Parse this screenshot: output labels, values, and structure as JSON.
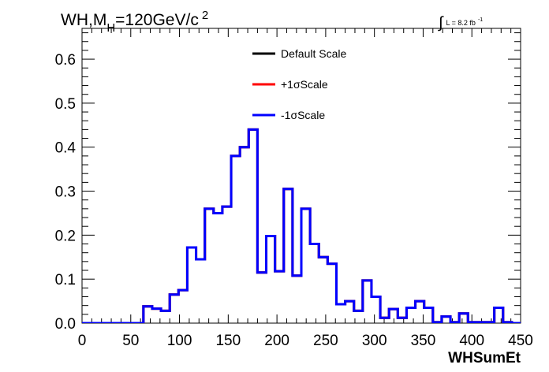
{
  "chart_data": {
    "type": "line",
    "title_parts": {
      "prefix": "WH,M",
      "sub": "H",
      "mid": "=120GeV/c",
      "sup": "2"
    },
    "lumi_parts": {
      "integral": "∫",
      "text": "L = 8.2 fb",
      "sup": "-1"
    },
    "xlabel": "WHSumEt",
    "ylabel": "",
    "xlim": [
      0,
      450
    ],
    "ylim": [
      0,
      0.67
    ],
    "x_ticks": [
      "0",
      "50",
      "100",
      "150",
      "200",
      "250",
      "300",
      "350",
      "400",
      "450"
    ],
    "y_ticks": [
      "0.0",
      "0.1",
      "0.2",
      "0.3",
      "0.4",
      "0.5",
      "0.6"
    ],
    "grid": false,
    "legend_position": "top-center",
    "bin_edges": [
      0,
      9,
      18,
      27,
      36,
      45,
      54,
      63,
      72,
      81,
      90,
      99,
      108,
      117,
      126,
      135,
      144,
      153,
      162,
      171,
      180,
      189,
      198,
      207,
      216,
      225,
      234,
      243,
      252,
      261,
      270,
      279,
      288,
      297,
      306,
      315,
      324,
      333,
      342,
      351,
      360,
      369,
      378,
      387,
      396,
      405,
      414,
      423,
      432,
      441,
      450
    ],
    "series": [
      {
        "name": "Default Scale",
        "color": "#000000",
        "values": [
          0,
          0,
          0,
          0,
          0,
          0,
          0,
          0.038,
          0.033,
          0.028,
          0.065,
          0.075,
          0.172,
          0.145,
          0.26,
          0.25,
          0.265,
          0.38,
          0.4,
          0.44,
          0.115,
          0.198,
          0.118,
          0.305,
          0.108,
          0.26,
          0.18,
          0.15,
          0.135,
          0.043,
          0.05,
          0.028,
          0.097,
          0.06,
          0.012,
          0.032,
          0.012,
          0.035,
          0.05,
          0.035,
          0.002,
          0.015,
          0.002,
          0.022,
          0.002,
          0.002,
          0.002,
          0.035,
          0.002,
          0
        ]
      },
      {
        "name": "+1σScale",
        "color": "#ff0000",
        "values": [
          0,
          0,
          0,
          0,
          0,
          0,
          0,
          0.038,
          0.033,
          0.028,
          0.065,
          0.075,
          0.172,
          0.145,
          0.26,
          0.25,
          0.265,
          0.38,
          0.4,
          0.44,
          0.115,
          0.198,
          0.118,
          0.305,
          0.108,
          0.26,
          0.18,
          0.15,
          0.135,
          0.043,
          0.05,
          0.028,
          0.097,
          0.06,
          0.012,
          0.032,
          0.012,
          0.035,
          0.05,
          0.035,
          0.002,
          0.015,
          0.002,
          0.022,
          0.002,
          0.002,
          0.002,
          0.035,
          0.002,
          0
        ]
      },
      {
        "name": "-1σScale",
        "color": "#0000ff",
        "values": [
          0,
          0,
          0,
          0,
          0,
          0,
          0,
          0.038,
          0.033,
          0.028,
          0.065,
          0.075,
          0.172,
          0.145,
          0.26,
          0.25,
          0.265,
          0.38,
          0.4,
          0.44,
          0.115,
          0.198,
          0.118,
          0.305,
          0.108,
          0.26,
          0.18,
          0.15,
          0.135,
          0.043,
          0.05,
          0.028,
          0.097,
          0.06,
          0.012,
          0.032,
          0.012,
          0.035,
          0.05,
          0.035,
          0.002,
          0.015,
          0.002,
          0.022,
          0.002,
          0.002,
          0.002,
          0.035,
          0.002,
          0
        ]
      }
    ]
  }
}
